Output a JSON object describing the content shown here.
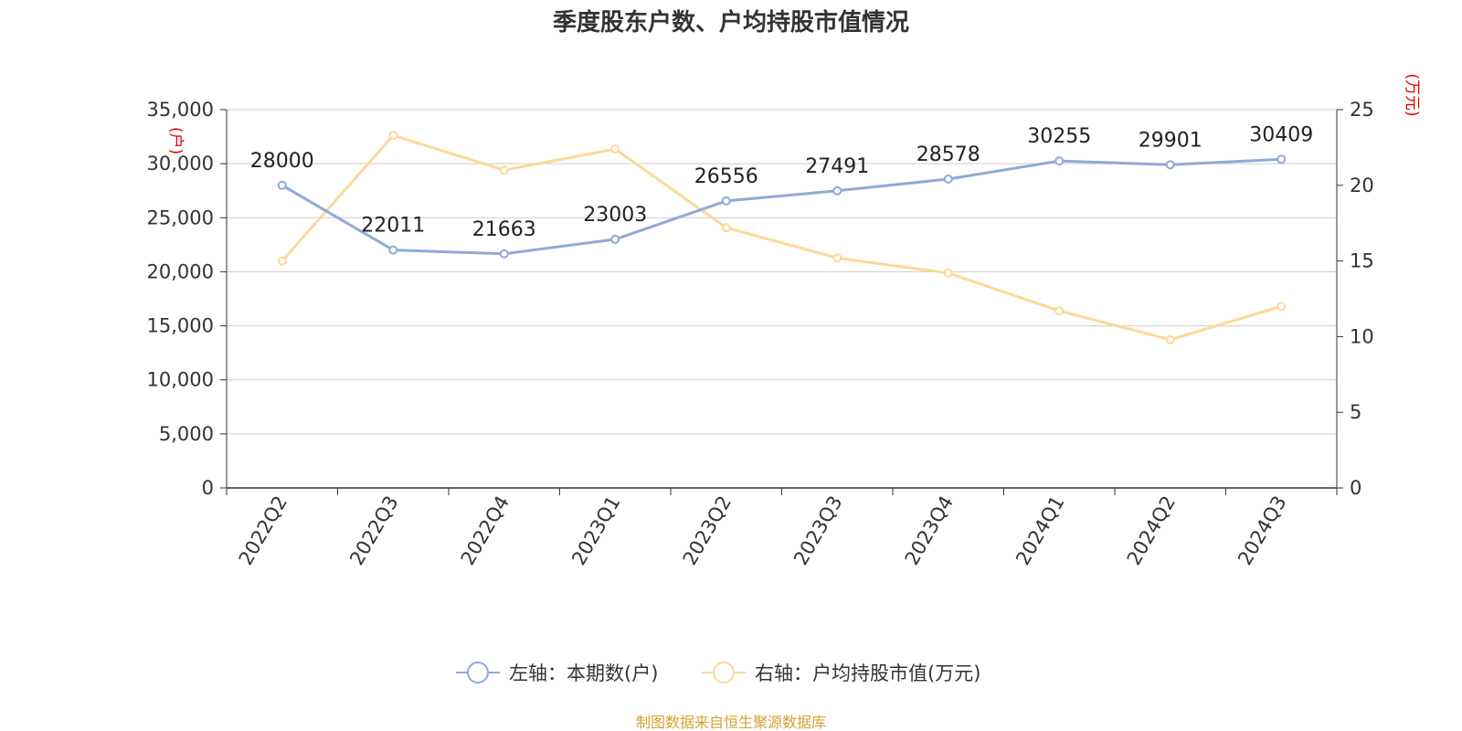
{
  "chart_data": {
    "type": "line",
    "title": "季度股东户数、户均持股市值情况",
    "categories": [
      "2022Q2",
      "2022Q3",
      "2022Q4",
      "2023Q1",
      "2023Q2",
      "2023Q3",
      "2023Q4",
      "2024Q1",
      "2024Q2",
      "2024Q3"
    ],
    "left_axis": {
      "unit": "(户)",
      "ylim": [
        0,
        35000
      ],
      "ticks": [
        "0",
        "5,000",
        "10,000",
        "15,000",
        "20,000",
        "25,000",
        "30,000",
        "35,000"
      ],
      "tick_values": [
        0,
        5000,
        10000,
        15000,
        20000,
        25000,
        30000,
        35000
      ]
    },
    "right_axis": {
      "unit": "(万元)",
      "ylim": [
        0,
        25
      ],
      "ticks": [
        "0",
        "5",
        "10",
        "15",
        "20",
        "25"
      ],
      "tick_values": [
        0,
        5,
        10,
        15,
        20,
        25
      ]
    },
    "series": [
      {
        "name": "左轴：本期数(户)",
        "axis": "left",
        "color": "#8eaad8",
        "values": [
          28000,
          22011,
          21663,
          23003,
          26556,
          27491,
          28578,
          30255,
          29901,
          30409
        ],
        "show_labels": true
      },
      {
        "name": "右轴：户均持股市值(万元)",
        "axis": "right",
        "color": "#fbd99a",
        "values": [
          15.0,
          23.3,
          21.0,
          22.4,
          17.2,
          15.2,
          14.2,
          11.7,
          9.8,
          12.0
        ],
        "show_labels": false
      }
    ],
    "grid": true,
    "legend_position": "bottom"
  },
  "source_text": "制图数据来自恒生聚源数据库"
}
